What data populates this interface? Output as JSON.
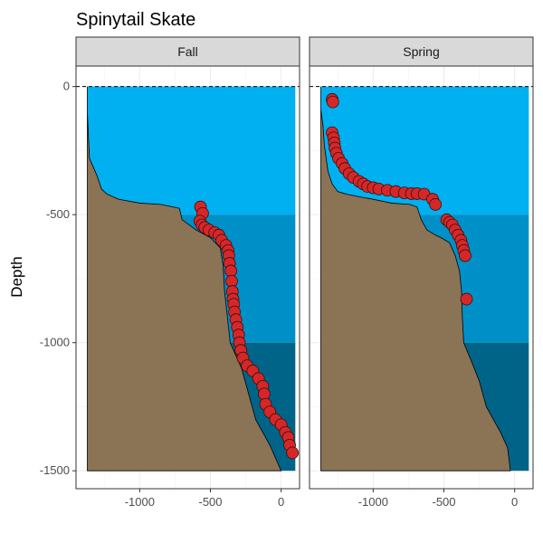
{
  "chart_data": {
    "type": "scatter",
    "title": "Spinytail Skate",
    "ylabel": "Depth",
    "xlabel": "",
    "xlim": [
      -1450,
      130
    ],
    "ylim": [
      -1570,
      80
    ],
    "x_ticks": [
      -1000,
      -500,
      0
    ],
    "x_tick_labels": [
      "-1000",
      "-500",
      "0"
    ],
    "y_ticks": [
      0,
      -500,
      -1000,
      -1500
    ],
    "y_tick_labels": [
      "0",
      "-500",
      "-1000",
      "-1500"
    ],
    "grid": true,
    "depth_zones": [
      {
        "from": 0,
        "to": -500,
        "color": "#00b0f0"
      },
      {
        "from": -500,
        "to": -1000,
        "color": "#0090c8"
      },
      {
        "from": -1000,
        "to": -1500,
        "color": "#006488"
      }
    ],
    "colors": {
      "seabed": "#8b7355",
      "point_fill": "#d62728",
      "point_stroke": "#3a1010",
      "strip_bg": "#d9d9d9",
      "surface_line": "#000000"
    },
    "facets": [
      {
        "label": "Fall",
        "seabed_profile": [
          [
            -1370,
            -100
          ],
          [
            -1355,
            -280
          ],
          [
            -1300,
            -350
          ],
          [
            -1270,
            -400
          ],
          [
            -1230,
            -420
          ],
          [
            -1150,
            -440
          ],
          [
            -1000,
            -455
          ],
          [
            -850,
            -460
          ],
          [
            -720,
            -475
          ],
          [
            -700,
            -520
          ],
          [
            -600,
            -560
          ],
          [
            -500,
            -590
          ],
          [
            -430,
            -630
          ],
          [
            -410,
            -700
          ],
          [
            -400,
            -800
          ],
          [
            -380,
            -900
          ],
          [
            -360,
            -1000
          ],
          [
            -320,
            -1050
          ],
          [
            -280,
            -1100
          ],
          [
            -230,
            -1200
          ],
          [
            -180,
            -1300
          ],
          [
            -80,
            -1400
          ],
          [
            0,
            -1500
          ]
        ],
        "points": [
          [
            -570,
            -470
          ],
          [
            -555,
            -495
          ],
          [
            -575,
            -525
          ],
          [
            -560,
            -540
          ],
          [
            -540,
            -550
          ],
          [
            -510,
            -560
          ],
          [
            -470,
            -570
          ],
          [
            -440,
            -580
          ],
          [
            -420,
            -600
          ],
          [
            -390,
            -620
          ],
          [
            -375,
            -640
          ],
          [
            -370,
            -660
          ],
          [
            -365,
            -690
          ],
          [
            -355,
            -720
          ],
          [
            -350,
            -760
          ],
          [
            -345,
            -800
          ],
          [
            -340,
            -830
          ],
          [
            -335,
            -850
          ],
          [
            -330,
            -880
          ],
          [
            -320,
            -910
          ],
          [
            -310,
            -940
          ],
          [
            -300,
            -970
          ],
          [
            -295,
            -1000
          ],
          [
            -285,
            -1030
          ],
          [
            -270,
            -1060
          ],
          [
            -240,
            -1090
          ],
          [
            -200,
            -1110
          ],
          [
            -160,
            -1140
          ],
          [
            -130,
            -1170
          ],
          [
            -120,
            -1200
          ],
          [
            -110,
            -1240
          ],
          [
            -80,
            -1270
          ],
          [
            -40,
            -1300
          ],
          [
            0,
            -1320
          ],
          [
            30,
            -1350
          ],
          [
            50,
            -1370
          ],
          [
            60,
            -1400
          ],
          [
            80,
            -1430
          ]
        ]
      },
      {
        "label": "Spring",
        "seabed_profile": [
          [
            -1370,
            -90
          ],
          [
            -1355,
            -150
          ],
          [
            -1345,
            -230
          ],
          [
            -1320,
            -330
          ],
          [
            -1290,
            -380
          ],
          [
            -1250,
            -410
          ],
          [
            -1190,
            -420
          ],
          [
            -1100,
            -430
          ],
          [
            -1000,
            -440
          ],
          [
            -870,
            -455
          ],
          [
            -740,
            -460
          ],
          [
            -690,
            -470
          ],
          [
            -660,
            -520
          ],
          [
            -620,
            -560
          ],
          [
            -560,
            -580
          ],
          [
            -520,
            -590
          ],
          [
            -460,
            -610
          ],
          [
            -420,
            -660
          ],
          [
            -390,
            -720
          ],
          [
            -375,
            -800
          ],
          [
            -370,
            -900
          ],
          [
            -360,
            -1000
          ],
          [
            -300,
            -1080
          ],
          [
            -250,
            -1150
          ],
          [
            -200,
            -1250
          ],
          [
            -150,
            -1300
          ],
          [
            -100,
            -1350
          ],
          [
            -50,
            -1410
          ],
          [
            -30,
            -1500
          ]
        ],
        "points": [
          [
            -1290,
            -50
          ],
          [
            -1285,
            -60
          ],
          [
            -1290,
            -180
          ],
          [
            -1280,
            -200
          ],
          [
            -1275,
            -220
          ],
          [
            -1270,
            -240
          ],
          [
            -1260,
            -260
          ],
          [
            -1245,
            -280
          ],
          [
            -1220,
            -300
          ],
          [
            -1200,
            -320
          ],
          [
            -1170,
            -340
          ],
          [
            -1140,
            -355
          ],
          [
            -1100,
            -370
          ],
          [
            -1070,
            -380
          ],
          [
            -1040,
            -390
          ],
          [
            -1000,
            -395
          ],
          [
            -960,
            -400
          ],
          [
            -900,
            -405
          ],
          [
            -840,
            -410
          ],
          [
            -780,
            -415
          ],
          [
            -730,
            -418
          ],
          [
            -690,
            -418
          ],
          [
            -640,
            -420
          ],
          [
            -580,
            -440
          ],
          [
            -560,
            -460
          ],
          [
            -480,
            -520
          ],
          [
            -460,
            -530
          ],
          [
            -440,
            -540
          ],
          [
            -420,
            -560
          ],
          [
            -400,
            -580
          ],
          [
            -380,
            -600
          ],
          [
            -370,
            -620
          ],
          [
            -360,
            -640
          ],
          [
            -350,
            -660
          ],
          [
            -340,
            -830
          ]
        ]
      }
    ]
  }
}
